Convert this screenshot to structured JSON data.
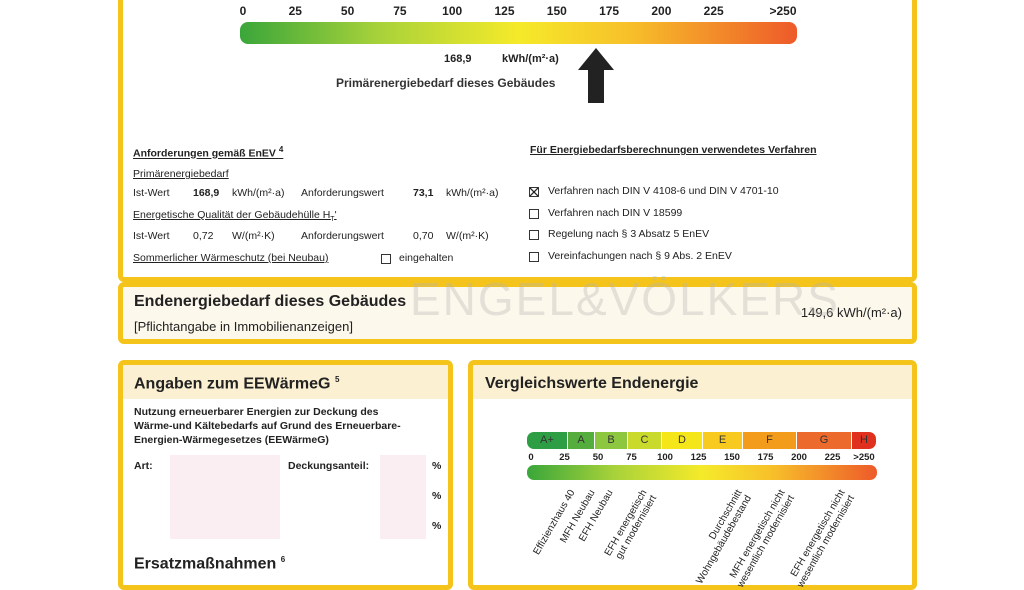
{
  "watermark": "ENGEL&VÖLKERS",
  "primary_scale": {
    "ticks": [
      "0",
      "25",
      "50",
      "75",
      "100",
      "125",
      "150",
      "175",
      "200",
      "225",
      ">250"
    ],
    "value": "168,9",
    "unit": "kWh/(m²·a)",
    "caption": "Primärenergiebedarf dieses Gebäudes"
  },
  "requirements": {
    "title": "Anforderungen gemäß EnEV",
    "note": "4",
    "primary_heading": "Primärenergiebedarf",
    "primary_row": [
      "Ist-Wert",
      "168,9",
      "kWh/(m²·a)",
      "Anforderungswert",
      "73,1",
      "kWh/(m²·a)"
    ],
    "envelope_heading": "Energetische Qualität der Gebäudehülle H",
    "envelope_sub": "T",
    "envelope_prime": "'",
    "envelope_row": [
      "Ist-Wert",
      "0,72",
      "W/(m²·K)",
      "Anforderungswert",
      "0,70",
      "W/(m²·K)"
    ],
    "summer_heading": "Sommerlicher Wärmeschutz (bei Neubau)",
    "summer_option": "eingehalten"
  },
  "method": {
    "title": "Für Energiebedarfsberechnungen verwendetes Verfahren",
    "options": [
      "Verfahren nach DIN V 4108-6 und DIN V 4701-10",
      "Verfahren nach DIN V 18599",
      "Regelung nach § 3 Absatz 5 EnEV",
      "Vereinfachungen nach § 9 Abs. 2 EnEV"
    ],
    "checked": [
      true,
      false,
      false,
      false
    ]
  },
  "final_energy": {
    "title": "Endenergiebedarf dieses Gebäudes",
    "note": "[Pflichtangabe in Immobilienanzeigen]",
    "value": "149,6 kWh/(m²·a)"
  },
  "eewaermeg": {
    "title": "Angaben zum EEWärmeG",
    "note": "5",
    "description": [
      "Nutzung erneuerbarer Energien zur Deckung des",
      "Wärme-und Kältebedarfs auf Grund des Erneuerbare-",
      "Energien-Wärmegesetzes (EEWärmeG)"
    ],
    "type_label": "Art:",
    "share_label": "Deckungsanteil:",
    "percent": [
      "%",
      "%",
      "%"
    ]
  },
  "replacement": {
    "title": "Ersatzmaßnahmen",
    "note": "6"
  },
  "comparison": {
    "title": "Vergleichswerte Endenergie",
    "classes": [
      "A+",
      "A",
      "B",
      "C",
      "D",
      "E",
      "F",
      "G",
      "H"
    ],
    "ticks": [
      "0",
      "25",
      "50",
      "75",
      "100",
      "125",
      "150",
      "175",
      "200",
      "225",
      ">250"
    ],
    "references": [
      "Effizienzhaus 40",
      "MFH Neubau",
      "EFH Neubau",
      "EFH energetisch\ngut modernisiert",
      "Durchschnitt\nWohngebäudebestand",
      "MFH energetisch nicht\nwesentlich modernisiert",
      "EFH energetisch nicht\nwesentlich modernisiert"
    ]
  }
}
